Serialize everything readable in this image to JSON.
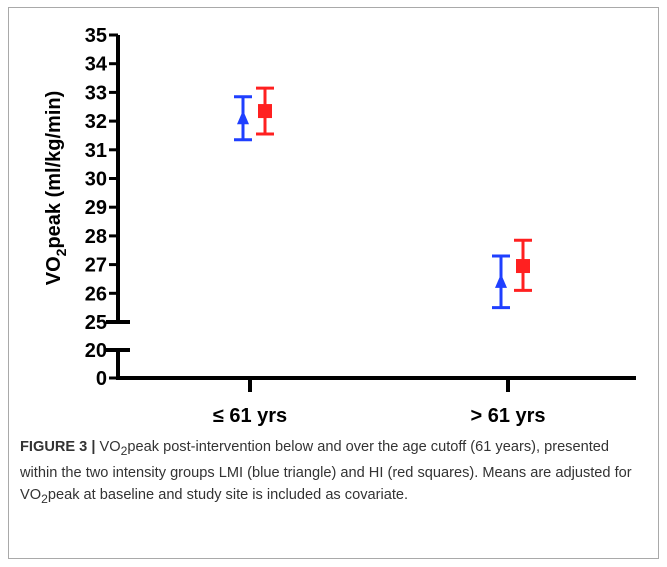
{
  "chart_data": {
    "type": "scatter",
    "ylabel": {
      "prefix": "VO",
      "sub": "2",
      "rest": "peak (ml/kg/min)"
    },
    "categories": [
      "≤ 61 yrs",
      "> 61 yrs"
    ],
    "y_ticks_upper": [
      "25",
      "26",
      "27",
      "28",
      "29",
      "30",
      "31",
      "32",
      "33",
      "34",
      "35"
    ],
    "y_ticks_lower": [
      "0",
      "20"
    ],
    "ylim_upper": [
      25,
      35
    ],
    "ylim_lower": [
      0,
      20
    ],
    "axis_break": [
      20,
      25
    ],
    "series": [
      {
        "color": "#1f3fff",
        "marker": "triangle",
        "points": [
          {
            "category": "≤ 61 yrs",
            "mean": 32.1,
            "lower": 31.35,
            "upper": 32.85
          },
          {
            "category": "> 61 yrs",
            "mean": 26.4,
            "lower": 25.5,
            "upper": 27.3
          }
        ]
      },
      {
        "color": "#ff2020",
        "marker": "square",
        "points": [
          {
            "category": "≤ 61 yrs",
            "mean": 32.35,
            "lower": 31.55,
            "upper": 33.15
          },
          {
            "category": "> 61 yrs",
            "mean": 26.95,
            "lower": 26.1,
            "upper": 27.85
          }
        ]
      }
    ]
  },
  "caption": {
    "label": "FIGURE 3 |",
    "part1": "VO",
    "sub1": "2",
    "part2": "peak post-intervention below and over the age cutoff (61 years), presented within the two intensity groups LMI (blue triangle) and HI (red squares). Means are adjusted for VO",
    "sub2": "2",
    "part3": "peak at baseline and study site is included as covariate."
  }
}
